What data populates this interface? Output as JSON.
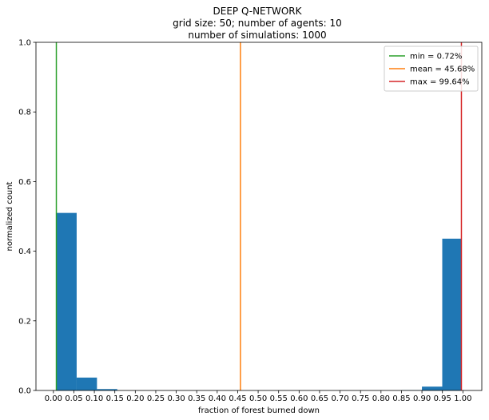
{
  "chart_data": {
    "type": "bar",
    "title_lines": [
      "DEEP Q-NETWORK",
      "grid size: 50; number of agents: 10",
      "number of simulations: 1000"
    ],
    "xlabel": "fraction of forest burned down",
    "ylabel": "normalized count",
    "xlim": [
      -0.0426,
      1.0462
    ],
    "ylim": [
      0,
      1.0
    ],
    "x_ticks": [
      "0.00",
      "0.05",
      "0.10",
      "0.15",
      "0.20",
      "0.25",
      "0.30",
      "0.35",
      "0.40",
      "0.45",
      "0.50",
      "0.55",
      "0.60",
      "0.65",
      "0.70",
      "0.75",
      "0.80",
      "0.85",
      "0.90",
      "0.95",
      "1.00"
    ],
    "y_ticks": [
      "0.0",
      "0.2",
      "0.4",
      "0.6",
      "0.8",
      "1.0"
    ],
    "bar_color": "#1f77b4",
    "histogram_bins": [
      {
        "start": 0.0072,
        "end": 0.0568,
        "value": 0.51
      },
      {
        "start": 0.0568,
        "end": 0.1064,
        "value": 0.037
      },
      {
        "start": 0.1064,
        "end": 0.156,
        "value": 0.004
      },
      {
        "start": 0.8504,
        "end": 0.9,
        "value": 0.001
      },
      {
        "start": 0.9,
        "end": 0.9496,
        "value": 0.011
      },
      {
        "start": 0.9496,
        "end": 0.9964,
        "value": 0.436
      }
    ],
    "vlines": [
      {
        "name": "min = 0.72%",
        "x": 0.0072,
        "color": "#2ca02c"
      },
      {
        "name": "mean = 45.68%",
        "x": 0.4568,
        "color": "#ff7f0e"
      },
      {
        "name": "max = 99.64%",
        "x": 0.9964,
        "color": "#d62728"
      }
    ],
    "legend_position": "top-right",
    "grid": false
  }
}
